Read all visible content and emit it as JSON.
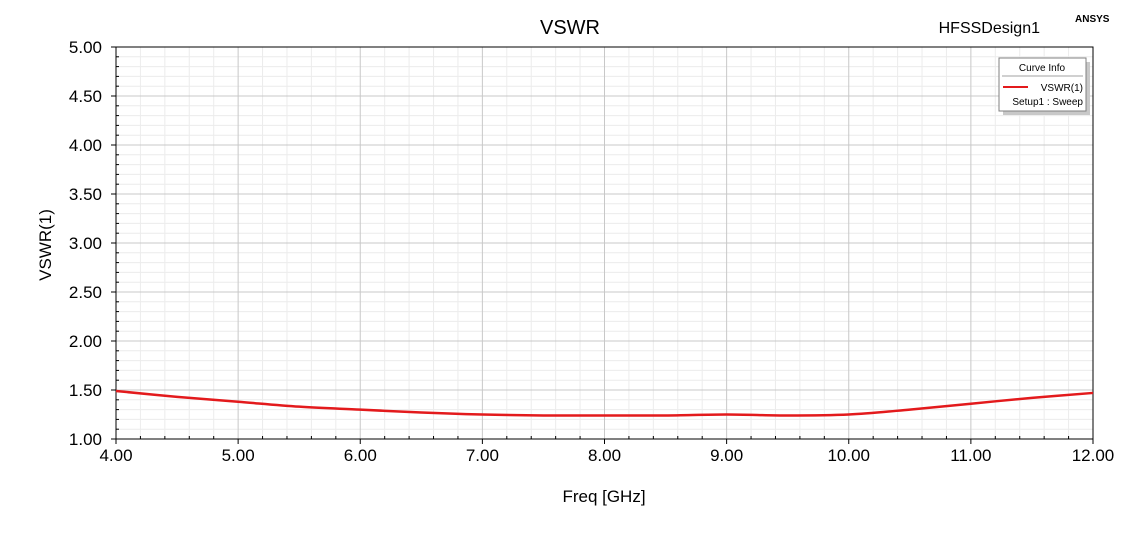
{
  "header": {
    "design_name": "HFSSDesign1",
    "brand": "ANSYS"
  },
  "chart_data": {
    "type": "line",
    "title": "VSWR",
    "xlabel": "Freq [GHz]",
    "ylabel": "VSWR(1)",
    "xlim": [
      4.0,
      12.0
    ],
    "ylim": [
      1.0,
      5.0
    ],
    "x_ticks": [
      "4.00",
      "5.00",
      "6.00",
      "7.00",
      "8.00",
      "9.00",
      "10.00",
      "11.00",
      "12.00"
    ],
    "y_ticks": [
      "1.00",
      "1.50",
      "2.00",
      "2.50",
      "3.00",
      "3.50",
      "4.00",
      "4.50",
      "5.00"
    ],
    "grid": true,
    "legend": {
      "title": "Curve Info",
      "placement": "top-right",
      "entries": [
        {
          "name": "VSWR(1)",
          "subtitle": "Setup1 : Sweep",
          "color": "#e31a1c"
        }
      ]
    },
    "series": [
      {
        "name": "VSWR(1)",
        "color": "#e31a1c",
        "x": [
          4.0,
          4.5,
          5.0,
          5.5,
          6.0,
          6.5,
          7.0,
          7.5,
          8.0,
          8.5,
          9.0,
          9.5,
          10.0,
          10.5,
          11.0,
          11.5,
          12.0
        ],
        "y": [
          1.49,
          1.43,
          1.38,
          1.33,
          1.3,
          1.27,
          1.25,
          1.24,
          1.24,
          1.24,
          1.25,
          1.24,
          1.25,
          1.3,
          1.36,
          1.42,
          1.47
        ]
      }
    ]
  }
}
